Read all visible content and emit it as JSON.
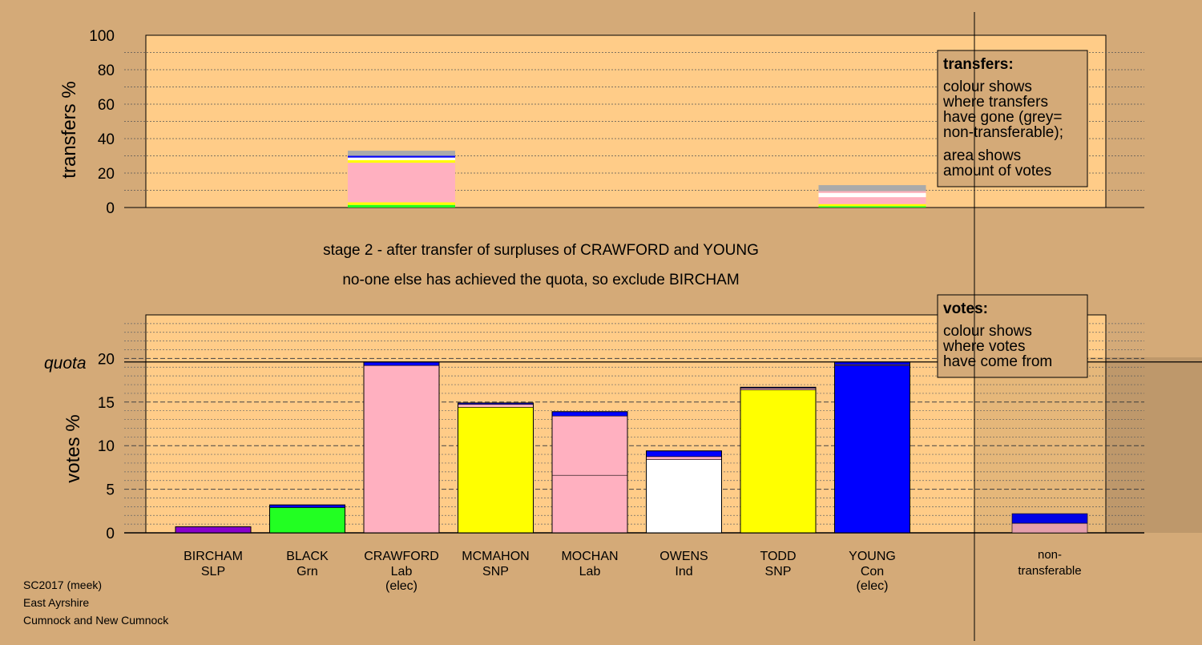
{
  "stage_title": "stage 2 - after transfer of surpluses of CRAWFORD and YOUNG",
  "stage_subtitle": "no-one else has achieved the quota, so exclude BIRCHAM",
  "footer": {
    "line1": "SC2017 (meek)",
    "line2": "East Ayrshire",
    "line3": "Cumnock and New Cumnock"
  },
  "transfers_legend": {
    "title": "transfers:",
    "lines": [
      "colour shows",
      "where transfers",
      "have gone (grey=",
      "non-transferable);",
      "area shows",
      "amount of votes"
    ]
  },
  "votes_legend": {
    "title": "votes:",
    "lines": [
      "colour shows",
      "where votes",
      "have come from"
    ]
  },
  "colors": {
    "background": "#d4aa78",
    "plot_background": "#ffcc88",
    "Lab": "#ffb0c0",
    "SNP": "#ffff00",
    "Con": "#0000ff",
    "Grn": "#22ff22",
    "SLP": "#8800cc",
    "Ind": "#ffffff",
    "non-transferable": "#aaaaaa"
  },
  "chart_data": [
    {
      "type": "bar",
      "ylabel": "transfers %",
      "ylim": [
        0,
        100
      ],
      "yticks": [
        0,
        20,
        40,
        60,
        80,
        100
      ],
      "grid": true,
      "bars": [
        {
          "candidate": "CRAWFORD",
          "segments": [
            {
              "party": "Grn",
              "value": 1.5
            },
            {
              "party": "SNP",
              "value": 1.5
            },
            {
              "party": "Lab",
              "value": 23.0
            },
            {
              "party": "SNP",
              "value": 1.5
            },
            {
              "party": "Ind",
              "value": 1.5
            },
            {
              "party": "Con",
              "value": 1.0
            },
            {
              "party": "non-transferable",
              "value": 3.0
            }
          ]
        },
        {
          "candidate": "YOUNG",
          "segments": [
            {
              "party": "Grn",
              "value": 0.8
            },
            {
              "party": "SNP",
              "value": 1.2
            },
            {
              "party": "Lab",
              "value": 4.0
            },
            {
              "party": "Ind",
              "value": 2.5
            },
            {
              "party": "Lab",
              "value": 1.0
            },
            {
              "party": "non-transferable",
              "value": 3.5
            }
          ]
        }
      ]
    },
    {
      "type": "bar",
      "ylabel": "votes %",
      "ylim": [
        0,
        25
      ],
      "yticks": [
        0,
        5,
        10,
        15,
        20
      ],
      "quota": 19.6,
      "quota_label": "quota",
      "grid": true,
      "candidates": [
        {
          "name": "BIRCHAM",
          "party": "SLP",
          "note": "",
          "segments": [
            {
              "party": "SLP",
              "value": 0.7
            }
          ]
        },
        {
          "name": "BLACK",
          "party": "Grn",
          "note": "",
          "segments": [
            {
              "party": "Grn",
              "value": 2.9
            },
            {
              "party": "Con",
              "value": 0.3
            }
          ]
        },
        {
          "name": "CRAWFORD",
          "party": "Lab",
          "note": "(elec)",
          "segments": [
            {
              "party": "Lab",
              "value": 19.2
            },
            {
              "party": "Con",
              "value": 0.4
            }
          ]
        },
        {
          "name": "MCMAHON",
          "party": "SNP",
          "note": "",
          "segments": [
            {
              "party": "SNP",
              "value": 14.4
            },
            {
              "party": "Lab",
              "value": 0.35
            },
            {
              "party": "Con",
              "value": 0.15
            }
          ]
        },
        {
          "name": "MOCHAN",
          "party": "Lab",
          "note": "",
          "segments": [
            {
              "party": "Lab",
              "value": 6.6
            },
            {
              "party": "Lab",
              "value": 6.8
            },
            {
              "party": "Con",
              "value": 0.5
            }
          ]
        },
        {
          "name": "OWENS",
          "party": "Ind",
          "note": "",
          "segments": [
            {
              "party": "Ind",
              "value": 8.4
            },
            {
              "party": "Lab",
              "value": 0.35
            },
            {
              "party": "Con",
              "value": 0.65
            }
          ]
        },
        {
          "name": "TODD",
          "party": "SNP",
          "note": "",
          "segments": [
            {
              "party": "SNP",
              "value": 16.4
            },
            {
              "party": "Lab",
              "value": 0.2
            },
            {
              "party": "Con",
              "value": 0.1
            }
          ]
        },
        {
          "name": "YOUNG",
          "party": "Con",
          "note": "(elec)",
          "segments": [
            {
              "party": "Con",
              "value": 19.2
            },
            {
              "party": "Lab",
              "value": 0.1
            },
            {
              "party": "Con",
              "value": 0.3
            }
          ]
        }
      ],
      "non_transferable": {
        "label_line1": "non-",
        "label_line2": "transferable",
        "segments": [
          {
            "party": "Lab",
            "value": 1.1
          },
          {
            "party": "Con",
            "value": 1.1
          }
        ]
      }
    }
  ]
}
